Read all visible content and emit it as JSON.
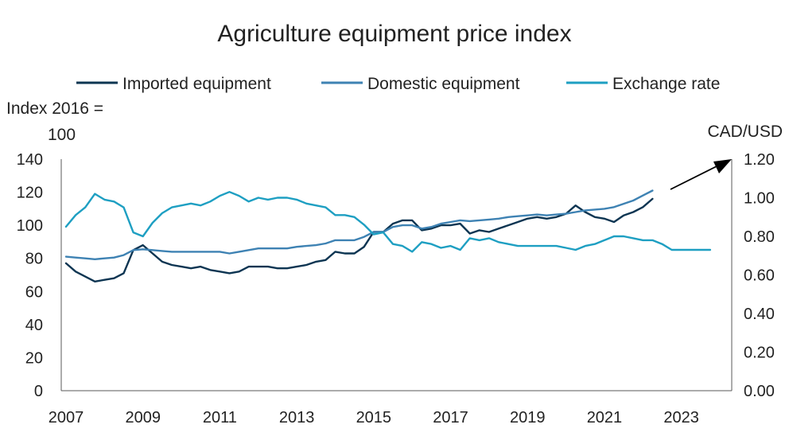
{
  "chart_data": {
    "type": "line",
    "title": "Agriculture equipment price index",
    "y_left_label_line1": "Index 2016 =",
    "y_left_label_line2": "100",
    "y_right_label": "CAD/USD",
    "ylim_left": [
      0,
      140
    ],
    "ylim_right": [
      0,
      1.2
    ],
    "xlim": [
      2007,
      2024
    ],
    "left_ticks": [
      "0",
      "20",
      "40",
      "60",
      "80",
      "100",
      "120",
      "140"
    ],
    "right_ticks": [
      "0.00",
      "0.20",
      "0.40",
      "0.60",
      "0.80",
      "1.00",
      "1.20"
    ],
    "x_ticks": [
      "2007",
      "2009",
      "2011",
      "2013",
      "2015",
      "2017",
      "2019",
      "2021",
      "2023"
    ],
    "grid": false,
    "legend": "top",
    "annotation": "arrow pointing to right axis",
    "series": [
      {
        "name": "Imported equipment",
        "axis": "left",
        "color": "#0d3552",
        "x": [
          2007.0,
          2007.25,
          2007.5,
          2007.75,
          2008.0,
          2008.25,
          2008.5,
          2008.75,
          2009.0,
          2009.25,
          2009.5,
          2009.75,
          2010.0,
          2010.25,
          2010.5,
          2010.75,
          2011.0,
          2011.25,
          2011.5,
          2011.75,
          2012.0,
          2012.25,
          2012.5,
          2012.75,
          2013.0,
          2013.25,
          2013.5,
          2013.75,
          2014.0,
          2014.25,
          2014.5,
          2014.75,
          2015.0,
          2015.25,
          2015.5,
          2015.75,
          2016.0,
          2016.25,
          2016.5,
          2016.75,
          2017.0,
          2017.25,
          2017.5,
          2017.75,
          2018.0,
          2018.25,
          2018.5,
          2018.75,
          2019.0,
          2019.25,
          2019.5,
          2019.75,
          2020.0,
          2020.25,
          2020.5,
          2020.75,
          2021.0,
          2021.25,
          2021.5,
          2021.75,
          2022.0,
          2022.25
        ],
        "values": [
          77,
          72,
          69,
          66,
          67,
          68,
          71,
          85,
          88,
          83,
          78,
          76,
          75,
          74,
          75,
          73,
          72,
          71,
          72,
          75,
          75,
          75,
          74,
          74,
          75,
          76,
          78,
          79,
          84,
          83,
          83,
          87,
          96,
          96,
          101,
          103,
          103,
          97,
          98,
          100,
          100,
          101,
          95,
          97,
          96,
          98,
          100,
          102,
          104,
          105,
          104,
          105,
          107,
          112,
          108,
          105,
          104,
          102,
          106,
          108,
          111,
          116
        ]
      },
      {
        "name": "Domestic equipment",
        "axis": "left",
        "color": "#3e82b3",
        "x": [
          2007.0,
          2007.25,
          2007.5,
          2007.75,
          2008.0,
          2008.25,
          2008.5,
          2008.75,
          2009.0,
          2009.25,
          2009.5,
          2009.75,
          2010.0,
          2010.25,
          2010.5,
          2010.75,
          2011.0,
          2011.25,
          2011.5,
          2011.75,
          2012.0,
          2012.25,
          2012.5,
          2012.75,
          2013.0,
          2013.25,
          2013.5,
          2013.75,
          2014.0,
          2014.25,
          2014.5,
          2014.75,
          2015.0,
          2015.25,
          2015.5,
          2015.75,
          2016.0,
          2016.25,
          2016.5,
          2016.75,
          2017.0,
          2017.25,
          2017.5,
          2017.75,
          2018.0,
          2018.25,
          2018.5,
          2018.75,
          2019.0,
          2019.25,
          2019.5,
          2019.75,
          2020.0,
          2020.25,
          2020.5,
          2020.75,
          2021.0,
          2021.25,
          2021.5,
          2021.75,
          2022.0,
          2022.25
        ],
        "values": [
          81,
          80.5,
          80,
          79.5,
          80,
          80.5,
          82,
          85,
          85.5,
          85,
          84.5,
          84,
          84,
          84,
          84,
          84,
          84,
          83,
          84,
          85,
          86,
          86,
          86,
          86,
          87,
          87.5,
          88,
          89,
          91,
          91,
          91,
          93,
          96,
          96,
          99,
          100,
          100,
          98,
          99,
          101,
          102,
          103,
          102.5,
          103,
          103.5,
          104,
          105,
          105.5,
          106,
          106.5,
          106,
          106.5,
          107,
          108,
          109,
          109.5,
          110,
          111,
          113,
          115,
          118,
          121
        ]
      },
      {
        "name": "Exchange rate",
        "axis": "right",
        "color": "#1e9fc2",
        "x": [
          2007.0,
          2007.25,
          2007.5,
          2007.75,
          2008.0,
          2008.25,
          2008.5,
          2008.75,
          2009.0,
          2009.25,
          2009.5,
          2009.75,
          2010.0,
          2010.25,
          2010.5,
          2010.75,
          2011.0,
          2011.25,
          2011.5,
          2011.75,
          2012.0,
          2012.25,
          2012.5,
          2012.75,
          2013.0,
          2013.25,
          2013.5,
          2013.75,
          2014.0,
          2014.25,
          2014.5,
          2014.75,
          2015.0,
          2015.25,
          2015.5,
          2015.75,
          2016.0,
          2016.25,
          2016.5,
          2016.75,
          2017.0,
          2017.25,
          2017.5,
          2017.75,
          2018.0,
          2018.25,
          2018.5,
          2018.75,
          2019.0,
          2019.25,
          2019.5,
          2019.75,
          2020.0,
          2020.25,
          2020.5,
          2020.75,
          2021.0,
          2021.25,
          2021.5,
          2021.75,
          2022.0,
          2022.25,
          2022.5,
          2022.75,
          2023.0,
          2023.25,
          2023.5,
          2023.75
        ],
        "values": [
          0.85,
          0.91,
          0.95,
          1.02,
          0.99,
          0.98,
          0.95,
          0.82,
          0.8,
          0.87,
          0.92,
          0.95,
          0.96,
          0.97,
          0.96,
          0.98,
          1.01,
          1.03,
          1.01,
          0.98,
          1.0,
          0.99,
          1.0,
          1.0,
          0.99,
          0.97,
          0.96,
          0.95,
          0.91,
          0.91,
          0.9,
          0.86,
          0.81,
          0.82,
          0.76,
          0.75,
          0.72,
          0.77,
          0.76,
          0.74,
          0.75,
          0.73,
          0.79,
          0.78,
          0.79,
          0.77,
          0.76,
          0.75,
          0.75,
          0.75,
          0.75,
          0.75,
          0.74,
          0.73,
          0.75,
          0.76,
          0.78,
          0.8,
          0.8,
          0.79,
          0.78,
          0.78,
          0.76,
          0.73,
          0.73,
          0.73,
          0.73,
          0.73
        ]
      }
    ]
  }
}
